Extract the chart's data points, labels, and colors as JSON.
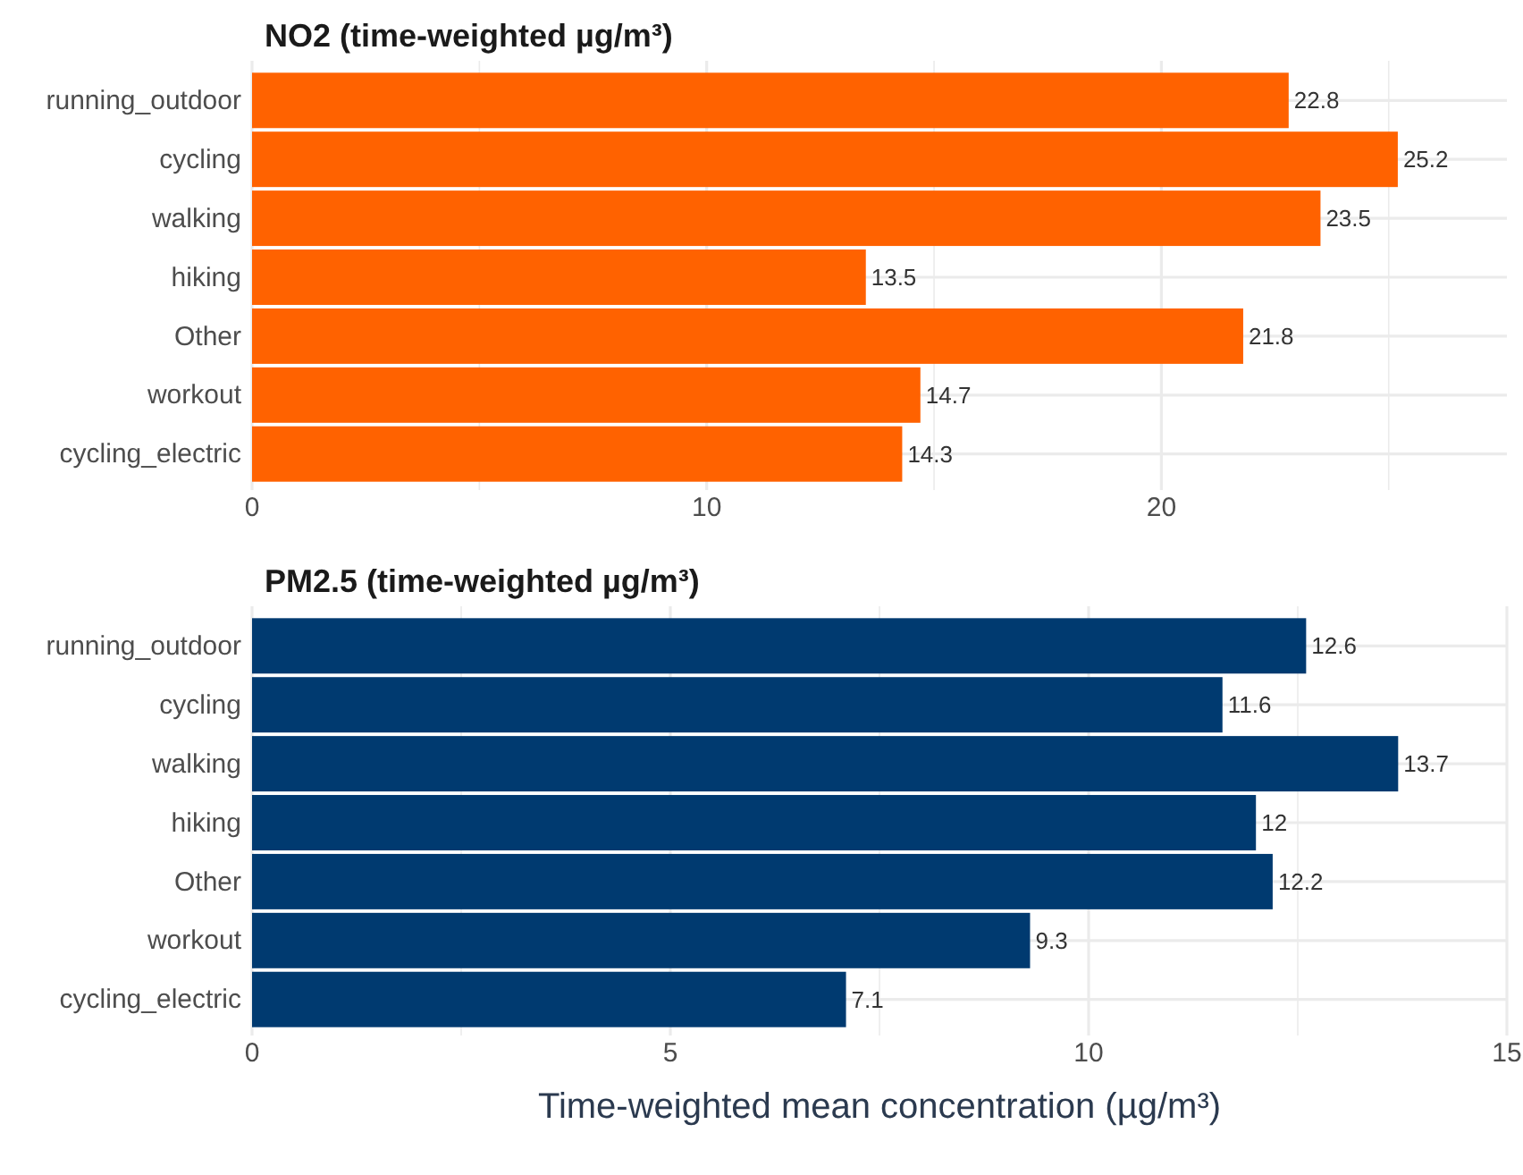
{
  "chart_data": [
    {
      "type": "bar",
      "orientation": "horizontal",
      "title": "NO2 (time-weighted µg/m³)",
      "categories": [
        "running_outdoor",
        "cycling",
        "walking",
        "hiking",
        "Other",
        "workout",
        "cycling_electric"
      ],
      "values": [
        22.8,
        25.2,
        23.5,
        13.5,
        21.8,
        14.7,
        14.3
      ],
      "color": "#ff6200",
      "xlim": [
        0,
        27.6
      ],
      "xticks": [
        0,
        {
          "value": 5,
          "label": null
        },
        10,
        {
          "value": 15,
          "label": null
        },
        20,
        {
          "value": 25,
          "label": null
        }
      ],
      "grid": true,
      "data_labels": true
    },
    {
      "type": "bar",
      "orientation": "horizontal",
      "title": "PM2.5 (time-weighted µg/m³)",
      "categories": [
        "running_outdoor",
        "cycling",
        "walking",
        "hiking",
        "Other",
        "workout",
        "cycling_electric"
      ],
      "values": [
        12.6,
        11.6,
        13.7,
        12,
        12.2,
        9.3,
        7.1
      ],
      "color": "#003a70",
      "xlim": [
        0,
        15
      ],
      "xticks": [
        0,
        {
          "value": 2.5,
          "label": null
        },
        5,
        {
          "value": 7.5,
          "label": null
        },
        10,
        {
          "value": 12.5,
          "label": null
        },
        15
      ],
      "grid": true,
      "data_labels": true,
      "xlabel": "Time-weighted mean concentration (µg/m³)"
    }
  ]
}
